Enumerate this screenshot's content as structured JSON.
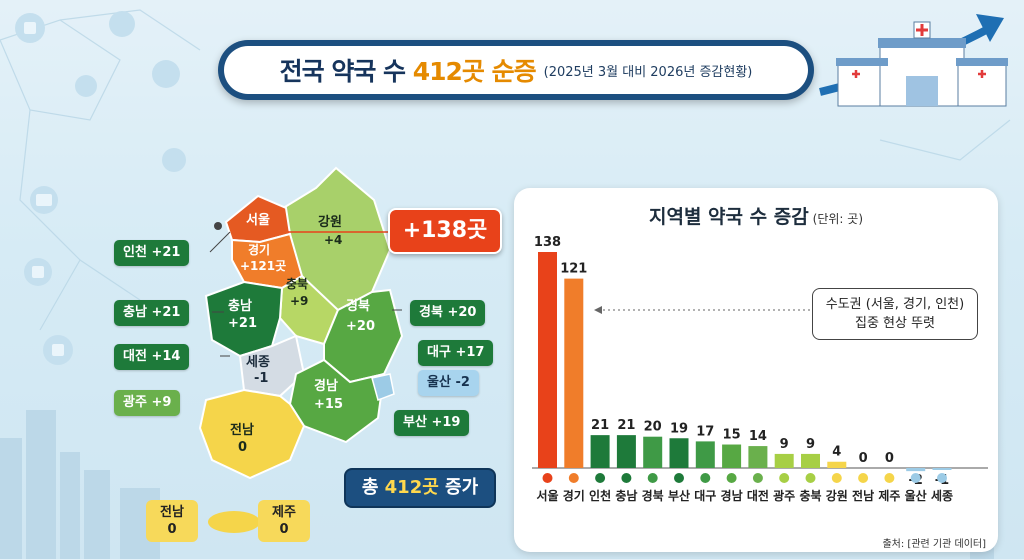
{
  "title": {
    "prefix": "전국 약국 수 ",
    "highlight": "412곳 순증",
    "subtitle": "(2025년 3월 대비 2026년 증감현황)"
  },
  "map": {
    "regions": {
      "seoul": "서울",
      "gyeonggi": "경기",
      "gyeonggi_value": "+121곳",
      "gangwon": "강원",
      "gangwon_value": "+4",
      "chungbuk": "충북",
      "chungbuk_value": "+9",
      "chungnam": "충남",
      "chungnam_value": "+21",
      "gyeongbuk": "경북",
      "gyeongbuk_value": "+20",
      "sejong": "세종",
      "sejong_value": "-1",
      "gyeongnam": "경남",
      "gyeongnam_value": "+15",
      "jeonnam": "전남",
      "jeonnam_value": "0"
    },
    "labels": {
      "incheon": "인천 +21",
      "chungnam": "충남 +21",
      "daejeon": "대전 +14",
      "gwangju": "광주 +9",
      "gyeongbuk": "경북 +20",
      "daegu": "대구 +17",
      "ulsan": "울산 -2",
      "busan": "부산 +19"
    },
    "seoul_badge": "+138곳",
    "total_badge": {
      "prefix": "총 ",
      "number": "412곳",
      "suffix": " 증가"
    },
    "jeonnam_box": {
      "name": "전남",
      "value": "0"
    },
    "jeju_box": {
      "name": "제주",
      "value": "0"
    }
  },
  "chart_title": "지역별 약국 수 증감",
  "chart_unit": "(단위: 곳)",
  "callout": {
    "line1": "수도권 (서울, 경기, 인천)",
    "line2": "집중 현상 뚜렷"
  },
  "source": "출처: [관련 기관 데이터]",
  "colors": {
    "red": "#e8421a",
    "orange": "#f07d2a",
    "dark_green": "#1e7a3a",
    "mid_green": "#3f9a46",
    "light_green": "#7cbd4a",
    "yellow_green": "#bcd94a",
    "yellow": "#f5d54a",
    "light_blue": "#9ccbe6",
    "navy": "#1c4f80"
  },
  "chart_data": {
    "type": "bar",
    "title": "지역별 약국 수 증감",
    "unit": "(단위: 곳)",
    "categories": [
      "서울",
      "경기",
      "인천",
      "충남",
      "경북",
      "부산",
      "대구",
      "경남",
      "대전",
      "광주",
      "충북",
      "강원",
      "전남",
      "제주",
      "울산",
      "세종"
    ],
    "values": [
      138,
      121,
      21,
      21,
      20,
      19,
      17,
      15,
      14,
      9,
      9,
      4,
      0,
      0,
      -2,
      -1
    ],
    "bar_colors": [
      "#e8421a",
      "#f07d2a",
      "#1e7a3a",
      "#1e7a3a",
      "#3f9a46",
      "#1e7a3a",
      "#3f9a46",
      "#57a843",
      "#6ab04c",
      "#a7cf45",
      "#a7cf45",
      "#f5d54a",
      "#f5d54a",
      "#f5d54a",
      "#9ccbe6",
      "#9ccbe6"
    ],
    "ylim": [
      -5,
      140
    ],
    "grid": false,
    "legend": "none"
  }
}
